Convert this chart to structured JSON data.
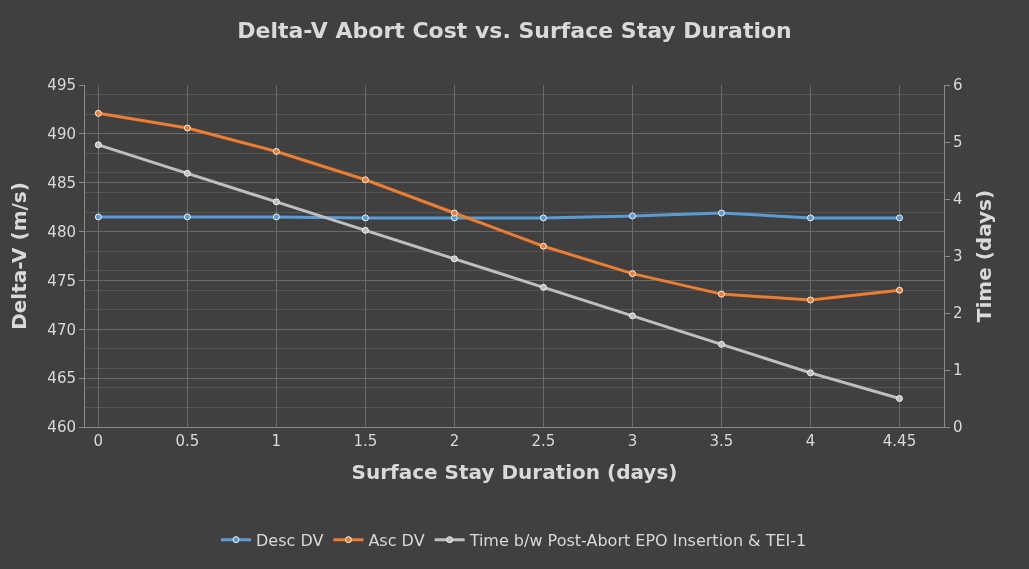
{
  "chart_data": {
    "type": "line",
    "title": "Delta-V Abort Cost vs. Surface Stay Duration",
    "xlabel": "Surface Stay Duration (days)",
    "ylabel": "Delta-V (m/s)",
    "y2label": "Time (days)",
    "categories": [
      "0",
      "0.5",
      "1",
      "1.5",
      "2",
      "2.5",
      "3",
      "3.5",
      "4",
      "4.45"
    ],
    "series": [
      {
        "name": "Desc DV",
        "color": "#5b9bd5",
        "values": [
          481.5,
          481.5,
          481.5,
          481.4,
          481.4,
          481.4,
          481.6,
          481.9,
          481.4,
          481.4
        ]
      },
      {
        "name": "Asc DV",
        "color": "#ed7d31",
        "values": [
          492.1,
          490.6,
          488.2,
          485.3,
          481.9,
          478.5,
          475.7,
          473.6,
          473.0,
          474.0
        ]
      },
      {
        "name": "Time b/w Post-Abort EPO Insertion & TEI-1",
        "color": "#bfbfbf",
        "axis": "y2",
        "values": [
          4.95,
          4.45,
          3.95,
          3.45,
          2.95,
          2.45,
          1.95,
          1.45,
          0.95,
          0.5
        ]
      }
    ],
    "ylim": [
      460,
      495
    ],
    "yticks": [
      460,
      465,
      470,
      475,
      480,
      485,
      490,
      495
    ],
    "y2lim": [
      0,
      6
    ],
    "y2ticks": [
      0,
      1,
      2,
      3,
      4,
      5,
      6
    ],
    "grid": true,
    "legend": "bottom",
    "marker": "circle",
    "line_style": "solid"
  }
}
